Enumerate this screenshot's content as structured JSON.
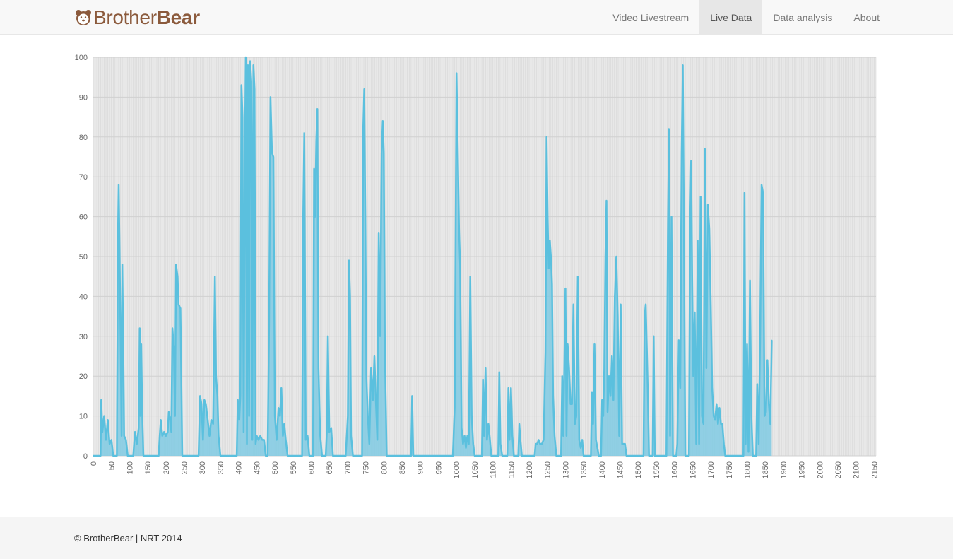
{
  "brand": {
    "name_light": "Brother",
    "name_bold": "Bear",
    "icon": "bear-icon",
    "color": "#8b5a3c"
  },
  "nav": {
    "items": [
      {
        "label": "Video Livestream",
        "active": false
      },
      {
        "label": "Live Data",
        "active": true
      },
      {
        "label": "Data analysis",
        "active": false
      },
      {
        "label": "About",
        "active": false
      }
    ]
  },
  "footer": {
    "text": "© BrotherBear | NRT 2014"
  },
  "chart_data": {
    "type": "area",
    "title": "",
    "xlabel": "",
    "ylabel": "",
    "ylim": [
      0,
      100
    ],
    "xlim": [
      0,
      2155
    ],
    "grid": true,
    "line_color": "#5bc0de",
    "fill_color": "#80cae3",
    "plot_background": "#e8e8e8",
    "y_ticks": [
      0,
      10,
      20,
      30,
      40,
      50,
      60,
      70,
      80,
      90,
      100
    ],
    "x_ticks": [
      0,
      50,
      100,
      150,
      200,
      250,
      300,
      350,
      400,
      450,
      500,
      550,
      600,
      650,
      700,
      750,
      800,
      850,
      900,
      950,
      1000,
      1050,
      1100,
      1150,
      1200,
      1250,
      1300,
      1350,
      1400,
      1450,
      1500,
      1550,
      1600,
      1650,
      1700,
      1750,
      1800,
      1850,
      1900,
      1950,
      2000,
      2050,
      2100,
      2150
    ],
    "points": [
      [
        0,
        0
      ],
      [
        20,
        0
      ],
      [
        22,
        14
      ],
      [
        25,
        6
      ],
      [
        30,
        10
      ],
      [
        35,
        4
      ],
      [
        40,
        9
      ],
      [
        45,
        3
      ],
      [
        50,
        4
      ],
      [
        55,
        0
      ],
      [
        65,
        0
      ],
      [
        68,
        55
      ],
      [
        70,
        68
      ],
      [
        72,
        55
      ],
      [
        75,
        30
      ],
      [
        78,
        5
      ],
      [
        80,
        48
      ],
      [
        83,
        24
      ],
      [
        85,
        5
      ],
      [
        90,
        4
      ],
      [
        95,
        0
      ],
      [
        110,
        0
      ],
      [
        115,
        6
      ],
      [
        120,
        3
      ],
      [
        125,
        7
      ],
      [
        128,
        32
      ],
      [
        130,
        10
      ],
      [
        132,
        28
      ],
      [
        135,
        10
      ],
      [
        138,
        0
      ],
      [
        180,
        0
      ],
      [
        183,
        5
      ],
      [
        186,
        9
      ],
      [
        190,
        5
      ],
      [
        195,
        6
      ],
      [
        200,
        5
      ],
      [
        205,
        6
      ],
      [
        208,
        11
      ],
      [
        212,
        9
      ],
      [
        215,
        6
      ],
      [
        218,
        32
      ],
      [
        222,
        27
      ],
      [
        225,
        10
      ],
      [
        228,
        48
      ],
      [
        232,
        45
      ],
      [
        235,
        38
      ],
      [
        240,
        37
      ],
      [
        245,
        0
      ],
      [
        290,
        0
      ],
      [
        294,
        15
      ],
      [
        298,
        13
      ],
      [
        302,
        4
      ],
      [
        306,
        14
      ],
      [
        310,
        13
      ],
      [
        315,
        9
      ],
      [
        320,
        5
      ],
      [
        325,
        9
      ],
      [
        330,
        8
      ],
      [
        335,
        45
      ],
      [
        338,
        20
      ],
      [
        342,
        15
      ],
      [
        345,
        5
      ],
      [
        350,
        0
      ],
      [
        395,
        0
      ],
      [
        398,
        14
      ],
      [
        402,
        9
      ],
      [
        405,
        15
      ],
      [
        408,
        93
      ],
      [
        411,
        85
      ],
      [
        414,
        6
      ],
      [
        418,
        80
      ],
      [
        420,
        100
      ],
      [
        423,
        3
      ],
      [
        426,
        98
      ],
      [
        429,
        10
      ],
      [
        432,
        99
      ],
      [
        435,
        94
      ],
      [
        438,
        4
      ],
      [
        441,
        98
      ],
      [
        444,
        92
      ],
      [
        447,
        3
      ],
      [
        450,
        5
      ],
      [
        455,
        4
      ],
      [
        460,
        5
      ],
      [
        465,
        4
      ],
      [
        470,
        4
      ],
      [
        475,
        0
      ],
      [
        480,
        0
      ],
      [
        484,
        33
      ],
      [
        488,
        90
      ],
      [
        492,
        76
      ],
      [
        496,
        75
      ],
      [
        500,
        10
      ],
      [
        505,
        4
      ],
      [
        510,
        12
      ],
      [
        514,
        10
      ],
      [
        518,
        17
      ],
      [
        522,
        5
      ],
      [
        526,
        8
      ],
      [
        530,
        4
      ],
      [
        535,
        0
      ],
      [
        575,
        0
      ],
      [
        578,
        60
      ],
      [
        581,
        81
      ],
      [
        585,
        4
      ],
      [
        590,
        5
      ],
      [
        595,
        0
      ],
      [
        605,
        0
      ],
      [
        608,
        72
      ],
      [
        611,
        60
      ],
      [
        614,
        79
      ],
      [
        617,
        87
      ],
      [
        620,
        22
      ],
      [
        625,
        5
      ],
      [
        630,
        0
      ],
      [
        640,
        0
      ],
      [
        643,
        6
      ],
      [
        646,
        30
      ],
      [
        650,
        6
      ],
      [
        655,
        7
      ],
      [
        660,
        0
      ],
      [
        695,
        0
      ],
      [
        698,
        5
      ],
      [
        701,
        10
      ],
      [
        704,
        49
      ],
      [
        707,
        40
      ],
      [
        710,
        5
      ],
      [
        715,
        0
      ],
      [
        740,
        0
      ],
      [
        743,
        81
      ],
      [
        746,
        92
      ],
      [
        749,
        60
      ],
      [
        752,
        20
      ],
      [
        756,
        10
      ],
      [
        760,
        3
      ],
      [
        765,
        22
      ],
      [
        770,
        14
      ],
      [
        774,
        25
      ],
      [
        778,
        14
      ],
      [
        782,
        4
      ],
      [
        786,
        56
      ],
      [
        790,
        30
      ],
      [
        794,
        76
      ],
      [
        797,
        84
      ],
      [
        800,
        76
      ],
      [
        803,
        25
      ],
      [
        808,
        0
      ],
      [
        875,
        0
      ],
      [
        878,
        15
      ],
      [
        881,
        0
      ],
      [
        990,
        0
      ],
      [
        995,
        12
      ],
      [
        1000,
        96
      ],
      [
        1003,
        80
      ],
      [
        1007,
        57
      ],
      [
        1010,
        48
      ],
      [
        1014,
        7
      ],
      [
        1018,
        3
      ],
      [
        1022,
        5
      ],
      [
        1026,
        2
      ],
      [
        1030,
        5
      ],
      [
        1034,
        3
      ],
      [
        1038,
        45
      ],
      [
        1042,
        10
      ],
      [
        1046,
        3
      ],
      [
        1050,
        0
      ],
      [
        1070,
        0
      ],
      [
        1073,
        19
      ],
      [
        1076,
        5
      ],
      [
        1080,
        22
      ],
      [
        1084,
        4
      ],
      [
        1088,
        8
      ],
      [
        1092,
        4
      ],
      [
        1096,
        0
      ],
      [
        1115,
        0
      ],
      [
        1118,
        21
      ],
      [
        1121,
        3
      ],
      [
        1126,
        0
      ],
      [
        1140,
        0
      ],
      [
        1143,
        17
      ],
      [
        1146,
        4
      ],
      [
        1150,
        17
      ],
      [
        1154,
        5
      ],
      [
        1158,
        0
      ],
      [
        1170,
        0
      ],
      [
        1173,
        8
      ],
      [
        1176,
        4
      ],
      [
        1180,
        0
      ],
      [
        1215,
        0
      ],
      [
        1218,
        3
      ],
      [
        1222,
        3
      ],
      [
        1226,
        4
      ],
      [
        1230,
        3
      ],
      [
        1235,
        3
      ],
      [
        1240,
        4
      ],
      [
        1245,
        26
      ],
      [
        1248,
        80
      ],
      [
        1251,
        60
      ],
      [
        1254,
        47
      ],
      [
        1257,
        54
      ],
      [
        1260,
        50
      ],
      [
        1263,
        43
      ],
      [
        1266,
        15
      ],
      [
        1270,
        5
      ],
      [
        1275,
        0
      ],
      [
        1288,
        0
      ],
      [
        1291,
        20
      ],
      [
        1294,
        5
      ],
      [
        1300,
        42
      ],
      [
        1303,
        5
      ],
      [
        1306,
        28
      ],
      [
        1310,
        22
      ],
      [
        1314,
        13
      ],
      [
        1318,
        13
      ],
      [
        1322,
        38
      ],
      [
        1326,
        8
      ],
      [
        1330,
        10
      ],
      [
        1334,
        45
      ],
      [
        1338,
        4
      ],
      [
        1342,
        2
      ],
      [
        1346,
        4
      ],
      [
        1350,
        0
      ],
      [
        1370,
        0
      ],
      [
        1373,
        16
      ],
      [
        1376,
        8
      ],
      [
        1380,
        28
      ],
      [
        1384,
        4
      ],
      [
        1388,
        2
      ],
      [
        1392,
        0
      ],
      [
        1398,
        0
      ],
      [
        1401,
        14
      ],
      [
        1404,
        10
      ],
      [
        1407,
        22
      ],
      [
        1410,
        50
      ],
      [
        1413,
        64
      ],
      [
        1416,
        11
      ],
      [
        1420,
        20
      ],
      [
        1424,
        15
      ],
      [
        1428,
        25
      ],
      [
        1432,
        14
      ],
      [
        1436,
        40
      ],
      [
        1440,
        50
      ],
      [
        1444,
        35
      ],
      [
        1448,
        5
      ],
      [
        1452,
        38
      ],
      [
        1456,
        3
      ],
      [
        1460,
        3
      ],
      [
        1464,
        3
      ],
      [
        1468,
        0
      ],
      [
        1515,
        0
      ],
      [
        1518,
        35
      ],
      [
        1521,
        38
      ],
      [
        1524,
        27
      ],
      [
        1527,
        15
      ],
      [
        1530,
        0
      ],
      [
        1540,
        0
      ],
      [
        1543,
        30
      ],
      [
        1546,
        0
      ],
      [
        1578,
        0
      ],
      [
        1582,
        55
      ],
      [
        1585,
        82
      ],
      [
        1588,
        5
      ],
      [
        1592,
        60
      ],
      [
        1596,
        0
      ],
      [
        1605,
        0
      ],
      [
        1608,
        3
      ],
      [
        1612,
        29
      ],
      [
        1616,
        17
      ],
      [
        1620,
        76
      ],
      [
        1623,
        98
      ],
      [
        1626,
        60
      ],
      [
        1630,
        0
      ],
      [
        1640,
        0
      ],
      [
        1643,
        57
      ],
      [
        1646,
        74
      ],
      [
        1649,
        44
      ],
      [
        1652,
        20
      ],
      [
        1656,
        36
      ],
      [
        1660,
        3
      ],
      [
        1664,
        54
      ],
      [
        1668,
        3
      ],
      [
        1672,
        65
      ],
      [
        1676,
        10
      ],
      [
        1680,
        8
      ],
      [
        1684,
        77
      ],
      [
        1688,
        22
      ],
      [
        1692,
        63
      ],
      [
        1696,
        57
      ],
      [
        1700,
        38
      ],
      [
        1704,
        17
      ],
      [
        1708,
        10
      ],
      [
        1712,
        9
      ],
      [
        1716,
        13
      ],
      [
        1720,
        8
      ],
      [
        1724,
        12
      ],
      [
        1728,
        8
      ],
      [
        1732,
        8
      ],
      [
        1736,
        3
      ],
      [
        1740,
        0
      ],
      [
        1790,
        0
      ],
      [
        1793,
        66
      ],
      [
        1796,
        3
      ],
      [
        1800,
        28
      ],
      [
        1804,
        1
      ],
      [
        1808,
        44
      ],
      [
        1812,
        10
      ],
      [
        1816,
        0
      ],
      [
        1825,
        0
      ],
      [
        1828,
        18
      ],
      [
        1832,
        3
      ],
      [
        1836,
        30
      ],
      [
        1840,
        68
      ],
      [
        1844,
        66
      ],
      [
        1848,
        10
      ],
      [
        1852,
        11
      ],
      [
        1856,
        24
      ],
      [
        1860,
        13
      ],
      [
        1864,
        8
      ],
      [
        1868,
        29
      ]
    ]
  }
}
